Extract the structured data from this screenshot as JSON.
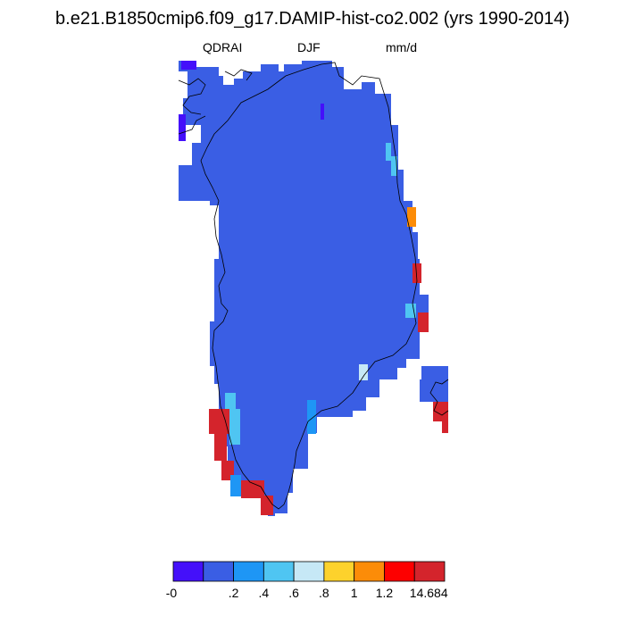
{
  "title": "b.e21.B1850cmip6.f09_g17.DAMIP-hist-co2.002 (yrs 1990-2014)",
  "subtitle": {
    "variable": "QDRAI",
    "season": "DJF",
    "units": "mm/d"
  },
  "colorbar": {
    "colors": [
      "#4410fa",
      "#3a5ee4",
      "#1e96f5",
      "#4fc5f2",
      "#c6e8f6",
      "#fdd22c",
      "#fc8c08",
      "#fd0000",
      "#d4242c"
    ],
    "labels": [
      "-0",
      ".2",
      ".4",
      ".6",
      ".8",
      "1",
      "1.2",
      "14.684"
    ]
  },
  "chart_data": {
    "type": "heatmap",
    "title": "b.e21.B1850cmip6.f09_g17.DAMIP-hist-co2.002 (yrs 1990-2014)",
    "variable": "QDRAI",
    "season": "DJF",
    "units": "mm/d",
    "region": "Greenland",
    "levels": [
      0,
      0.2,
      0.4,
      0.6,
      0.8,
      1,
      1.2,
      14.684
    ],
    "dominant_range": "0 - 0.2",
    "high_value_cells": [
      {
        "location": "southwest coast",
        "range": "> 1.2"
      },
      {
        "location": "east coast (north)",
        "range": "1 - 1.2"
      },
      {
        "location": "east coast (central)",
        "range": "> 1.2"
      },
      {
        "location": "southeast coast",
        "range": "> 1.2"
      }
    ]
  }
}
